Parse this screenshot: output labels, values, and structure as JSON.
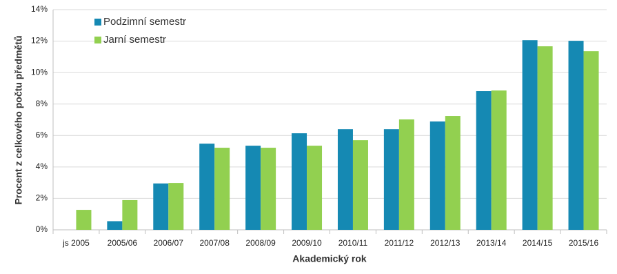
{
  "chart_data": {
    "type": "bar",
    "x_label": "Akademický rok",
    "y_label": "Procent z celkového počtu předmětů",
    "categories": [
      "js 2005",
      "2005/06",
      "2006/07",
      "2007/08",
      "2008/09",
      "2009/10",
      "2010/11",
      "2011/12",
      "2012/13",
      "2013/14",
      "2014/15",
      "2015/16"
    ],
    "series": [
      {
        "name": "Podzimní semestr",
        "color": "#1589b3",
        "values": [
          null,
          0.55,
          2.95,
          5.48,
          5.35,
          6.14,
          6.4,
          6.4,
          6.89,
          8.82,
          12.06,
          12.02
        ]
      },
      {
        "name": "Jarní semestr",
        "color": "#92d050",
        "values": [
          1.27,
          1.89,
          2.98,
          5.22,
          5.22,
          5.35,
          5.7,
          7.02,
          7.24,
          8.86,
          11.67,
          11.36
        ]
      }
    ],
    "ylim": [
      0,
      14
    ],
    "yticks": [
      {
        "value": 0,
        "label": "0%"
      },
      {
        "value": 2,
        "label": "2%"
      },
      {
        "value": 4,
        "label": "4%"
      },
      {
        "value": 6,
        "label": "6%"
      },
      {
        "value": 8,
        "label": "8%"
      },
      {
        "value": 10,
        "label": "10%"
      },
      {
        "value": 12,
        "label": "12%"
      },
      {
        "value": 14,
        "label": "14%"
      }
    ],
    "grid": true,
    "legend": "top-left"
  }
}
